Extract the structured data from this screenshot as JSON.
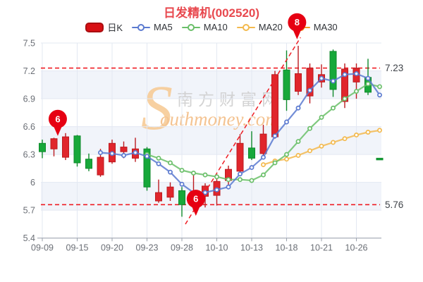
{
  "header": {
    "title": "日发精机(002520)"
  },
  "legend": {
    "kline_label": "日K",
    "ma5_label": "MA5",
    "ma10_label": "MA10",
    "ma20_label": "MA20",
    "ma30_label": "MA30"
  },
  "watermark": {
    "initial": "S",
    "cn": "南方财富网",
    "en": "outhmoney.com"
  },
  "colors": {
    "title": "#e8494f",
    "candle_up_fill": "#e0262c",
    "candle_up_stroke": "#bc1b20",
    "candle_down_fill": "#17a83a",
    "candle_down_stroke": "#0f8a2c",
    "ma5": "#5b7ad0",
    "ma10": "#6abf69",
    "ma20": "#f3b94d",
    "ma30": "#f59a23",
    "badge": "#e60012",
    "ref_line": "#ef1d24",
    "band": "#f1f4fa",
    "grid": "#e3e8f2",
    "axis": "#9aa0ab",
    "tick_text": "#6b6f76",
    "ref_label_text": "#3f4349",
    "watermark_gray": "#cfcfcf",
    "watermark_orange": "#f3bd86",
    "watermark_s": "#f7cb97"
  },
  "chart_data": {
    "type": "candlestick",
    "title": "日发精机(002520)",
    "ylim": [
      5.4,
      7.5
    ],
    "y_ticks": [
      7.5,
      7.2,
      6.9,
      6.6,
      6.3,
      6.0,
      5.7,
      5.4
    ],
    "y_tick_labels": [
      "7.5",
      "7.2",
      "6.9",
      "6.6",
      "6.3",
      "6",
      "5.7",
      "5.4"
    ],
    "x_tick_labels": [
      "09-09",
      "09-15",
      "09-20",
      "09-23",
      "09-28",
      "10-10",
      "10-13",
      "10-18",
      "10-21",
      "10-26"
    ],
    "x_tick_slots": [
      0,
      3,
      6,
      9,
      12,
      15,
      18,
      21,
      24,
      27
    ],
    "grid": "on",
    "legend_position": "top",
    "ref_lines": [
      {
        "label": "7.23",
        "value": 7.23
      },
      {
        "label": "5.76",
        "value": 5.76
      }
    ],
    "candles": [
      {
        "o": 6.42,
        "h": 6.46,
        "l": 6.26,
        "c": 6.33,
        "dir": "down"
      },
      {
        "o": 6.36,
        "h": 6.48,
        "l": 6.28,
        "c": 6.47,
        "dir": "up"
      },
      {
        "o": 6.27,
        "h": 6.53,
        "l": 6.24,
        "c": 6.49,
        "dir": "up"
      },
      {
        "o": 6.5,
        "h": 6.51,
        "l": 6.17,
        "c": 6.21,
        "dir": "down"
      },
      {
        "o": 6.25,
        "h": 6.31,
        "l": 6.12,
        "c": 6.15,
        "dir": "down"
      },
      {
        "o": 6.08,
        "h": 6.36,
        "l": 6.06,
        "c": 6.27,
        "dir": "up"
      },
      {
        "o": 6.22,
        "h": 6.46,
        "l": 6.2,
        "c": 6.42,
        "dir": "up"
      },
      {
        "o": 6.33,
        "h": 6.44,
        "l": 6.26,
        "c": 6.38,
        "dir": "up"
      },
      {
        "o": 6.26,
        "h": 6.48,
        "l": 6.22,
        "c": 6.36,
        "dir": "up"
      },
      {
        "o": 6.36,
        "h": 6.38,
        "l": 5.91,
        "c": 5.95,
        "dir": "down"
      },
      {
        "o": 5.8,
        "h": 6.03,
        "l": 5.78,
        "c": 5.89,
        "dir": "up"
      },
      {
        "o": 5.84,
        "h": 6.0,
        "l": 5.8,
        "c": 5.95,
        "dir": "up"
      },
      {
        "o": 5.91,
        "h": 5.95,
        "l": 5.63,
        "c": 5.76,
        "dir": "down"
      },
      {
        "o": 5.79,
        "h": 6.1,
        "l": 5.7,
        "c": 5.9,
        "dir": "up"
      },
      {
        "o": 5.85,
        "h": 5.99,
        "l": 5.73,
        "c": 5.96,
        "dir": "up"
      },
      {
        "o": 5.86,
        "h": 6.08,
        "l": 5.75,
        "c": 6.01,
        "dir": "up"
      },
      {
        "o": 6.02,
        "h": 6.18,
        "l": 5.97,
        "c": 6.14,
        "dir": "up"
      },
      {
        "o": 6.12,
        "h": 6.52,
        "l": 6.09,
        "c": 6.42,
        "dir": "up"
      },
      {
        "o": 6.37,
        "h": 6.55,
        "l": 6.24,
        "c": 6.26,
        "dir": "down"
      },
      {
        "o": 6.31,
        "h": 6.62,
        "l": 6.28,
        "c": 6.52,
        "dir": "up"
      },
      {
        "o": 6.49,
        "h": 7.2,
        "l": 6.47,
        "c": 7.16,
        "dir": "up"
      },
      {
        "o": 7.21,
        "h": 7.42,
        "l": 6.77,
        "c": 6.89,
        "dir": "down"
      },
      {
        "o": 6.98,
        "h": 7.47,
        "l": 6.94,
        "c": 7.17,
        "dir": "up"
      },
      {
        "o": 6.93,
        "h": 7.28,
        "l": 6.85,
        "c": 7.23,
        "dir": "up"
      },
      {
        "o": 7.08,
        "h": 7.27,
        "l": 7.02,
        "c": 7.16,
        "dir": "up"
      },
      {
        "o": 7.41,
        "h": 7.43,
        "l": 6.92,
        "c": 7.0,
        "dir": "down"
      },
      {
        "o": 6.87,
        "h": 7.28,
        "l": 6.8,
        "c": 7.22,
        "dir": "up"
      },
      {
        "o": 7.08,
        "h": 7.28,
        "l": 6.9,
        "c": 7.23,
        "dir": "up"
      },
      {
        "o": 7.13,
        "h": 7.33,
        "l": 6.94,
        "c": 6.97,
        "dir": "down"
      },
      {
        "o": 6.26,
        "h": 6.26,
        "l": 6.26,
        "c": 6.26,
        "dir": "down"
      }
    ],
    "series": [
      {
        "name": "MA20",
        "start_index": 19,
        "values": [
          6.19,
          6.23,
          6.25,
          6.29,
          6.34,
          6.39,
          6.43,
          6.47,
          6.51,
          6.54,
          6.56
        ]
      },
      {
        "name": "MA10",
        "start_index": 9,
        "values": [
          6.3,
          6.26,
          6.21,
          6.13,
          6.1,
          6.08,
          6.06,
          6.03,
          6.03,
          6.02,
          6.08,
          6.21,
          6.3,
          6.44,
          6.58,
          6.7,
          6.8,
          6.9,
          6.98,
          7.06,
          7.03
        ]
      },
      {
        "name": "MA5",
        "start_index": 5,
        "values": [
          6.32,
          6.31,
          6.29,
          6.32,
          6.28,
          6.2,
          6.11,
          5.98,
          5.89,
          5.89,
          5.92,
          5.95,
          6.09,
          6.16,
          6.27,
          6.5,
          6.65,
          6.8,
          6.99,
          7.12,
          7.09,
          7.16,
          7.17,
          7.12,
          6.94
        ]
      }
    ],
    "annotations": [
      {
        "text": "6",
        "x_index": 1.33,
        "tip_price": 6.5
      },
      {
        "text": "6",
        "x_index": 13.2,
        "tip_price": 5.64
      },
      {
        "text": "8",
        "x_index": 21.9,
        "tip_price": 7.54
      }
    ],
    "trend_line": {
      "x1_index": 12.3,
      "price1": 5.55,
      "x2_index": 22.2,
      "price2": 7.56
    }
  }
}
